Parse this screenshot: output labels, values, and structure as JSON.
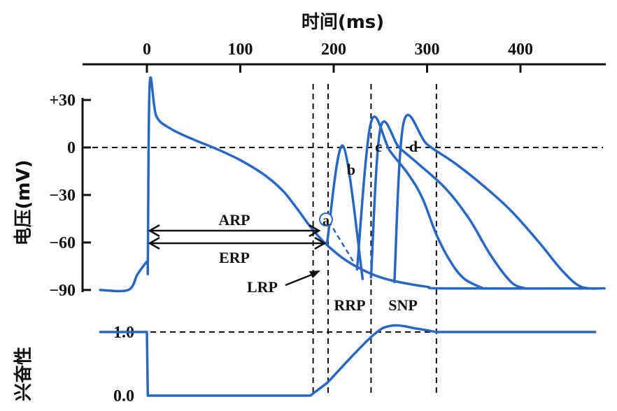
{
  "chart_data": {
    "type": "line",
    "title": "",
    "top_axis": {
      "label": "时间(ms)",
      "ticks": [
        0,
        100,
        200,
        300,
        400
      ],
      "tick_labels": [
        "0",
        "100",
        "200",
        "300",
        "400"
      ]
    },
    "voltage_axis": {
      "label": "电压(mV)",
      "ticks": [
        30,
        0,
        -30,
        -60,
        -90
      ],
      "tick_labels": [
        "+30",
        "0",
        "-30",
        "-60",
        "-90"
      ],
      "ylim": [
        -90,
        30
      ]
    },
    "excitability_axis": {
      "label": "兴奋性",
      "tick_labels": [
        "1.0",
        "0.0"
      ],
      "ticks": [
        1.0,
        0.0
      ]
    },
    "series": [
      {
        "points": [
          [
            -50,
            -90
          ],
          [
            -20,
            -90
          ],
          [
            -10,
            -80
          ],
          [
            0,
            -72
          ],
          [
            1,
            -72
          ],
          [
            3,
            40
          ],
          [
            10,
            20
          ],
          [
            25,
            12
          ],
          [
            50,
            5
          ],
          [
            75,
            -1
          ],
          [
            100,
            -8
          ],
          [
            125,
            -17
          ],
          [
            145,
            -27
          ],
          [
            160,
            -38
          ],
          [
            175,
            -50
          ],
          [
            190,
            -60
          ],
          [
            210,
            -70
          ],
          [
            230,
            -77
          ],
          [
            250,
            -82
          ],
          [
            270,
            -85
          ],
          [
            300,
            -88
          ],
          [
            320,
            -89
          ],
          [
            480,
            -89
          ]
        ]
      },
      {
        "points": [
          [
            193,
            -60
          ],
          [
            210,
            1
          ],
          [
            231,
            -83
          ]
        ]
      },
      {
        "points": [
          [
            225,
            -77
          ],
          [
            240,
            16
          ],
          [
            260,
            -2
          ],
          [
            280,
            -17
          ],
          [
            295,
            -32
          ],
          [
            310,
            -55
          ],
          [
            325,
            -72
          ],
          [
            340,
            -83
          ],
          [
            360,
            -89
          ]
        ]
      },
      {
        "points": [
          [
            240,
            -82
          ],
          [
            250,
            12
          ],
          [
            270,
            0
          ],
          [
            290,
            -10
          ],
          [
            320,
            -26
          ],
          [
            345,
            -45
          ],
          [
            368,
            -68
          ],
          [
            390,
            -85
          ],
          [
            405,
            -89
          ]
        ]
      },
      {
        "points": [
          [
            265,
            -85
          ],
          [
            275,
            16
          ],
          [
            300,
            2
          ],
          [
            330,
            -10
          ],
          [
            360,
            -24
          ],
          [
            390,
            -40
          ],
          [
            420,
            -60
          ],
          [
            445,
            -78
          ],
          [
            465,
            -88
          ],
          [
            490,
            -89
          ]
        ]
      }
    ],
    "dashed_decay": [
      [
        190,
        -42
      ],
      [
        222,
        -73
      ]
    ],
    "excitability": [
      [
        -50,
        1.0
      ],
      [
        0,
        1.0
      ],
      [
        1,
        0.0
      ],
      [
        175,
        0.0
      ],
      [
        193,
        0.2
      ],
      [
        240,
        0.92
      ],
      [
        262,
        1.1
      ],
      [
        290,
        1.05
      ],
      [
        310,
        1.0
      ],
      [
        480,
        1.0
      ]
    ],
    "vertical_markers_ms": [
      178,
      194,
      240,
      310
    ],
    "reference_lines": {
      "zero_mV": 0,
      "excitability_level": 1.0
    },
    "annotations": {
      "arp": "ARP",
      "erp": "ERP",
      "lrp": "LRP",
      "rrp": "RRP",
      "snp": "SNP",
      "a": "a",
      "b": "b",
      "c": "c",
      "d": "d"
    },
    "colors": {
      "curve": "#2a66c4",
      "line": "#111111"
    }
  }
}
